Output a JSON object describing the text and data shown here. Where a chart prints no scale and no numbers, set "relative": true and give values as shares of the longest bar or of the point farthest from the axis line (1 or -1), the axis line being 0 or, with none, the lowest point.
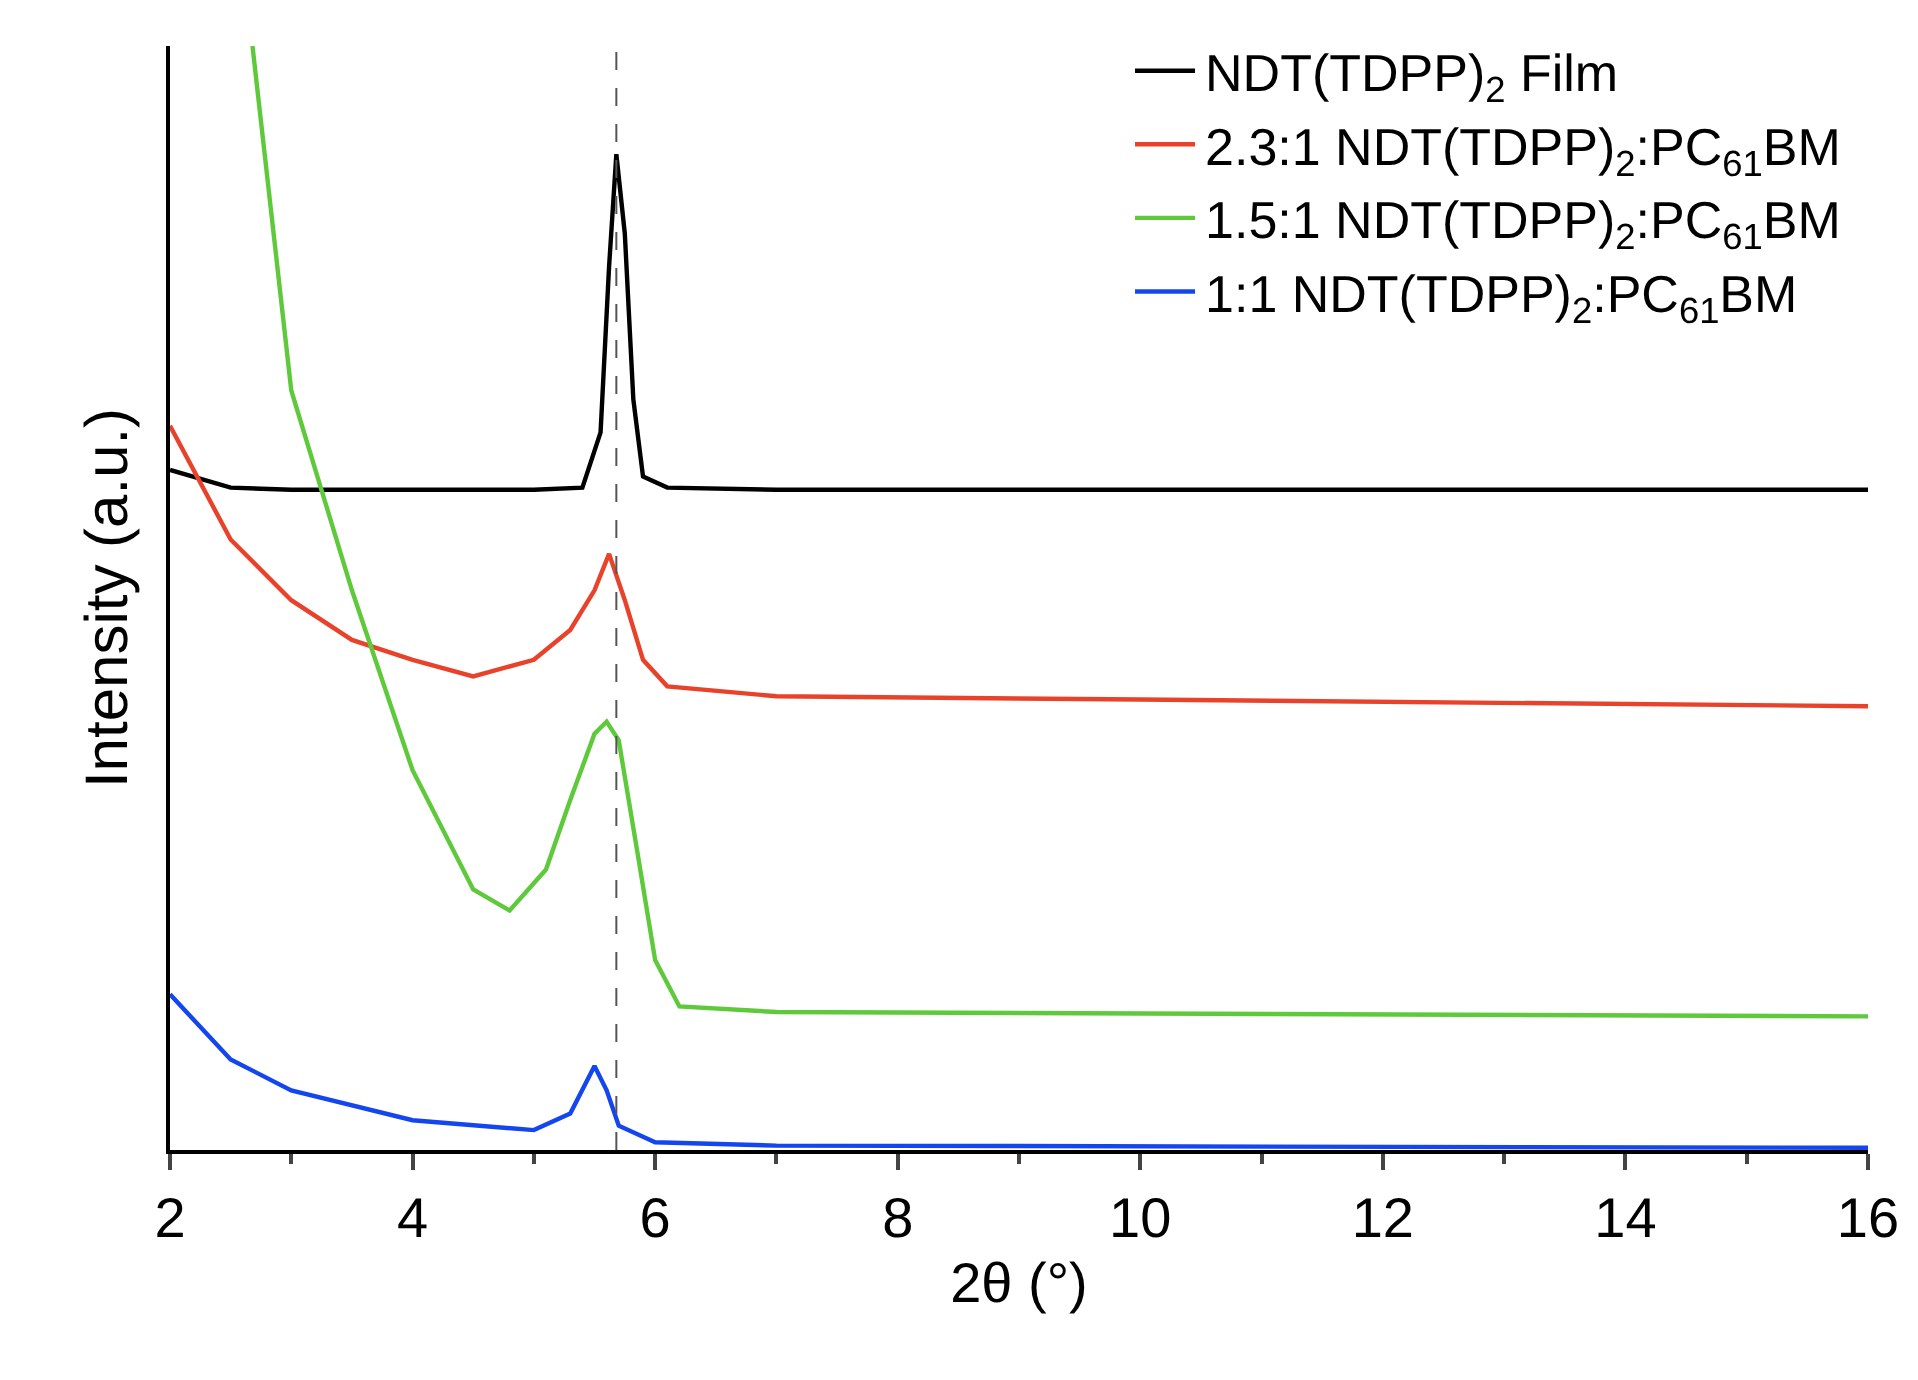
{
  "chart_data": {
    "type": "line",
    "relative": true,
    "xlabel": "2θ (°)",
    "ylabel": "Intensity (a.u.)",
    "xlim": [
      2,
      16
    ],
    "xticks": [
      2,
      4,
      6,
      8,
      10,
      12,
      14,
      16
    ],
    "tick_labels": "x",
    "grid": false,
    "legend": "top right",
    "marker": "none",
    "line_style": "solid",
    "ref_lines": [
      {
        "axis": "x",
        "value": 5.68,
        "color": "#555555",
        "line_style": "dashed"
      }
    ],
    "series": [
      {
        "name": "NDT(TDPP)$_{2}$ Film",
        "color": "#000000",
        "x": [
          2,
          2.5,
          3,
          4,
          5,
          5.4,
          5.55,
          5.62,
          5.68,
          5.75,
          5.82,
          5.9,
          6.1,
          7,
          16
        ],
        "values": [
          0.616,
          0.6,
          0.598,
          0.598,
          0.598,
          0.6,
          0.65,
          0.8,
          0.902,
          0.83,
          0.68,
          0.61,
          0.6,
          0.598,
          0.598
        ]
      },
      {
        "name": "2.3:1 NDT(TDPP)$_{2}$:PC$_{61}$BM",
        "color": "#e8432a",
        "x": [
          2,
          2.5,
          3,
          3.5,
          4,
          4.5,
          5,
          5.3,
          5.5,
          5.62,
          5.75,
          5.9,
          6.1,
          7,
          10,
          16
        ],
        "values": [
          0.656,
          0.553,
          0.498,
          0.462,
          0.444,
          0.429,
          0.444,
          0.471,
          0.507,
          0.54,
          0.498,
          0.444,
          0.42,
          0.411,
          0.408,
          0.402
        ]
      },
      {
        "name": "1.5:1 NDT(TDPP)$_{2}$:PC$_{61}$BM",
        "color": "#5fc93c",
        "x": [
          2.68,
          3,
          3.5,
          4,
          4.5,
          4.8,
          5.1,
          5.3,
          5.5,
          5.6,
          5.7,
          5.85,
          6,
          6.2,
          7,
          16
        ],
        "values": [
          1,
          0.688,
          0.507,
          0.344,
          0.236,
          0.217,
          0.254,
          0.317,
          0.377,
          0.388,
          0.371,
          0.272,
          0.172,
          0.13,
          0.125,
          0.121
        ]
      },
      {
        "name": "1:1 NDT(TDPP)$_{2}$:PC$_{61}$BM",
        "color": "#1446f0",
        "x": [
          2,
          2.5,
          3,
          4,
          5,
          5.3,
          5.5,
          5.6,
          5.7,
          6,
          7,
          16
        ],
        "values": [
          0.141,
          0.082,
          0.054,
          0.027,
          0.018,
          0.033,
          0.076,
          0.054,
          0.022,
          0.007,
          0.004,
          0.002
        ]
      }
    ]
  }
}
